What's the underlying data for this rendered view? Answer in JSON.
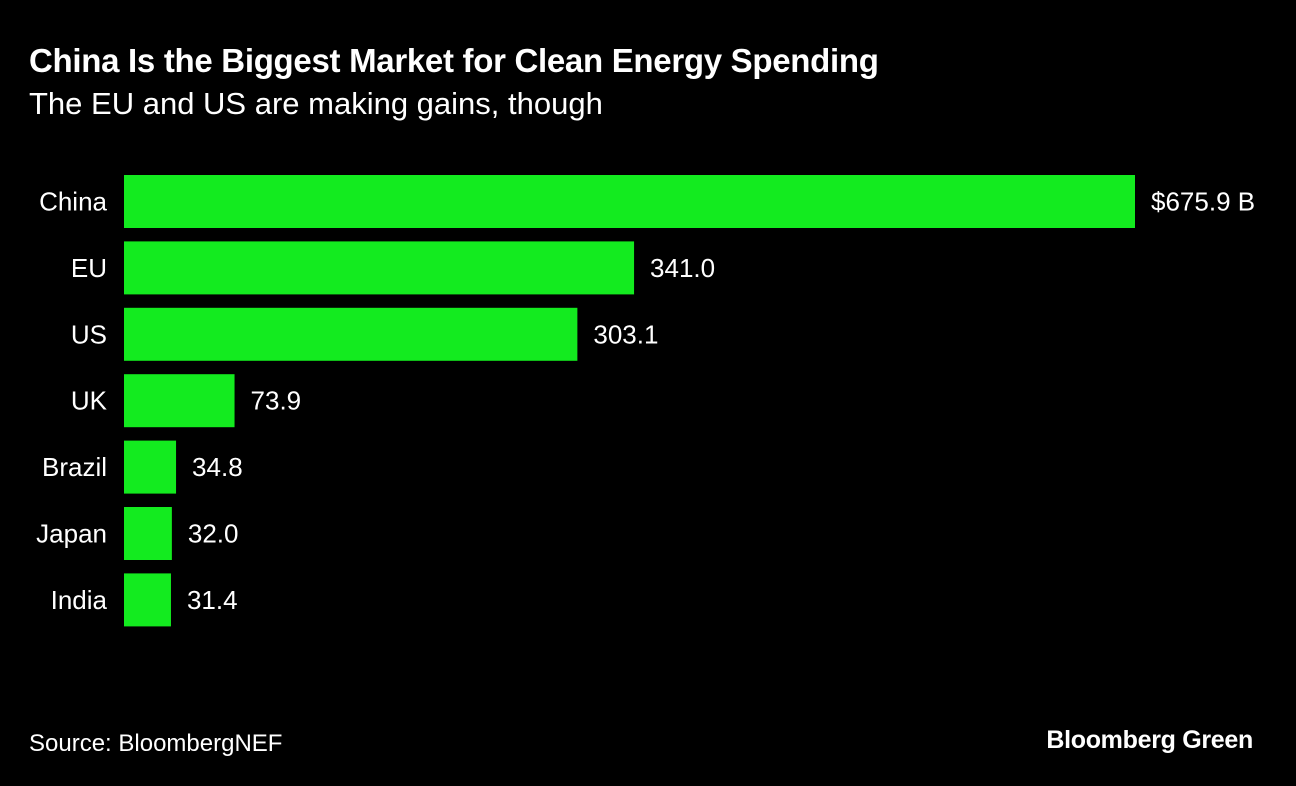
{
  "header": {
    "title": "China Is the Biggest Market for Clean Energy Spending",
    "subtitle": "The EU and US are making gains, though"
  },
  "footer": {
    "source": "Source: BloombergNEF",
    "brand": "Bloomberg Green"
  },
  "colors": {
    "background": "#000000",
    "bar": "#13eb1f",
    "text": "#ffffff"
  },
  "chart_data": {
    "type": "bar",
    "orientation": "horizontal",
    "title": "China Is the Biggest Market for Clean Energy Spending",
    "subtitle": "The EU and US are making gains, though",
    "categories": [
      "China",
      "EU",
      "US",
      "UK",
      "Brazil",
      "Japan",
      "India"
    ],
    "values": [
      675.9,
      341.0,
      303.1,
      73.9,
      34.8,
      32.0,
      31.4
    ],
    "value_labels": [
      "$675.9 B",
      "341.0",
      "303.1",
      "73.9",
      "34.8",
      "32.0",
      "31.4"
    ],
    "unit": "B",
    "xlabel": "",
    "ylabel": "",
    "xlim": [
      0,
      675.9
    ],
    "grid": false,
    "legend": "none"
  }
}
